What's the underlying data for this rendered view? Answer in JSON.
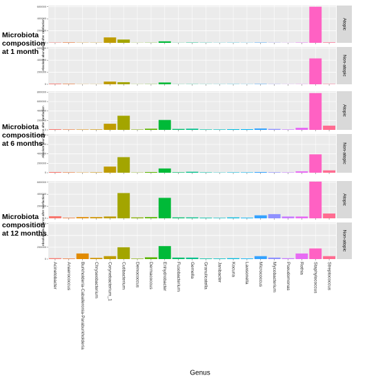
{
  "chart_data": {
    "type": "bar",
    "x_label": "Genus",
    "categories": [
      "Acinetobacter",
      "Anaerococcus",
      "Burkholderia-Caballeronia-Paraburkholderia",
      "Chryseobacterium",
      "Corynebacterium_1",
      "Cutibacterium",
      "Deinococcus",
      "Dermacoccus",
      "Enhydrobacter",
      "Fusobacterium",
      "Gemella",
      "Granulicatella",
      "Janibacter",
      "Kocuria",
      "Lawsonella",
      "Micrococcus",
      "Mycobacterium",
      "Pseudomonas",
      "Rothia",
      "Staphylococcus",
      "Streptococcus"
    ],
    "colors": [
      "#F8766D",
      "#EE8044",
      "#E18A00",
      "#CF9400",
      "#BE9C00",
      "#A3A500",
      "#85AD00",
      "#5BB300",
      "#00BA38",
      "#00BE6C",
      "#00C08B",
      "#00C1A7",
      "#00BFC4",
      "#00BADE",
      "#00B2F3",
      "#35A2FF",
      "#8F91FF",
      "#C77CFF",
      "#E76BF3",
      "#FF61C3",
      "#FF6C91"
    ],
    "grid": true,
    "panels": [
      {
        "label": "Microbiota composition at 1 month",
        "y_label": "Absolute abundance after rarefaction",
        "ylim": [
          0,
          620000
        ],
        "yticks": [
          0,
          200000,
          400000,
          600000
        ],
        "facets": [
          {
            "name": "Atopic",
            "values": [
              5000,
              8000,
              3000,
              3000,
              90000,
              55000,
              2000,
              3000,
              25000,
              2000,
              5000,
              3000,
              2000,
              3000,
              2000,
              5000,
              3000,
              2000,
              5000,
              600000,
              8000
            ]
          },
          {
            "name": "Non-atopic",
            "values": [
              10000,
              8000,
              2000,
              2000,
              45000,
              35000,
              2000,
              3000,
              30000,
              2000,
              3000,
              2000,
              2000,
              3000,
              2000,
              5000,
              3000,
              2000,
              3000,
              430000,
              5000
            ]
          }
        ]
      },
      {
        "label": "Microbiota composition at 6 months",
        "y_label": "Absolute abundance after rarefaction",
        "ylim": [
          0,
          820000
        ],
        "yticks": [
          0,
          200000,
          400000,
          600000,
          800000
        ],
        "facets": [
          {
            "name": "Atopic",
            "values": [
              15000,
              10000,
              8000,
              10000,
              130000,
              300000,
              8000,
              25000,
              210000,
              20000,
              25000,
              10000,
              10000,
              15000,
              15000,
              30000,
              20000,
              10000,
              45000,
              780000,
              90000
            ]
          },
          {
            "name": "Non-atopic",
            "values": [
              15000,
              10000,
              5000,
              8000,
              130000,
              330000,
              5000,
              15000,
              90000,
              10000,
              20000,
              8000,
              5000,
              8000,
              8000,
              15000,
              10000,
              8000,
              30000,
              390000,
              50000
            ]
          }
        ]
      },
      {
        "label": "Microbiota composition at 12 months",
        "y_label": "Absolute abundance after rarefaction",
        "ylim": [
          0,
          620000
        ],
        "yticks": [
          0,
          200000,
          400000,
          600000
        ],
        "facets": [
          {
            "name": "Atopic",
            "values": [
              35000,
              10000,
              20000,
              20000,
              30000,
              420000,
              15000,
              20000,
              340000,
              15000,
              15000,
              10000,
              8000,
              15000,
              10000,
              50000,
              70000,
              30000,
              30000,
              610000,
              80000
            ]
          },
          {
            "name": "Non-atopic",
            "values": [
              15000,
              10000,
              95000,
              20000,
              50000,
              200000,
              8000,
              30000,
              220000,
              25000,
              25000,
              10000,
              10000,
              15000,
              10000,
              50000,
              25000,
              15000,
              95000,
              180000,
              50000
            ]
          }
        ]
      }
    ]
  }
}
